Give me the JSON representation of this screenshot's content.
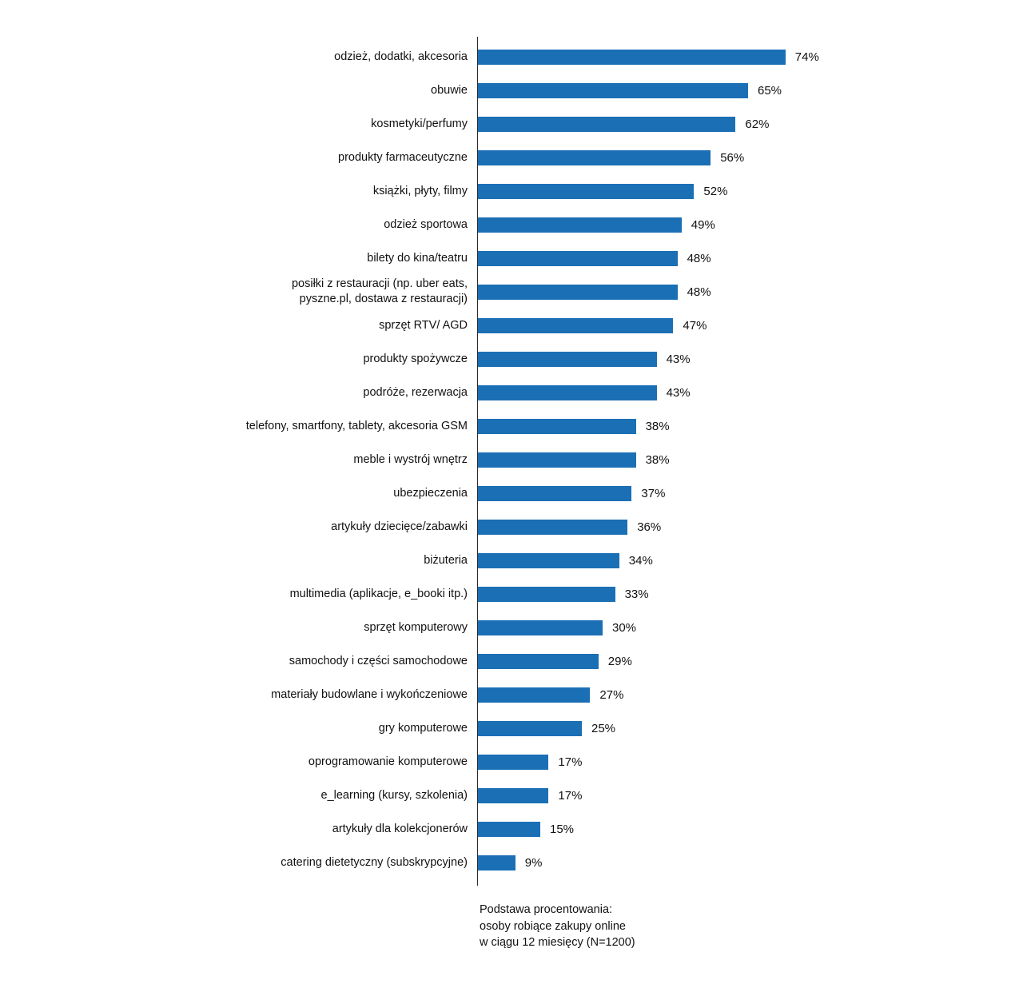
{
  "chart_data": {
    "type": "bar",
    "orientation": "horizontal",
    "title": "",
    "xlabel": "",
    "ylabel": "",
    "unit": "%",
    "xlim": [
      0,
      100
    ],
    "grid": false,
    "legend": false,
    "bar_color": "#1b6fb5",
    "categories": [
      "odzież, dodatki, akcesoria",
      "obuwie",
      "kosmetyki/perfumy",
      "produkty farmaceutyczne",
      "książki, płyty, filmy",
      "odzież sportowa",
      "bilety do kina/teatru",
      "posiłki z restauracji (np. uber eats,\npyszne.pl, dostawa z restauracji)",
      "sprzęt RTV/ AGD",
      "produkty spożywcze",
      "podróże, rezerwacja",
      "telefony, smartfony, tablety, akcesoria GSM",
      "meble i wystrój wnętrz",
      "ubezpieczenia",
      "artykuły dziecięce/zabawki",
      "biżuteria",
      "multimedia (aplikacje, e_booki itp.)",
      "sprzęt komputerowy",
      "samochody i części samochodowe",
      "materiały budowlane i wykończeniowe",
      "gry komputerowe",
      "oprogramowanie komputerowe",
      "e_learning (kursy, szkolenia)",
      "artykuły dla kolekcjonerów",
      "catering dietetyczny (subskrypcyjne)"
    ],
    "values": [
      74,
      65,
      62,
      56,
      52,
      49,
      48,
      48,
      47,
      43,
      43,
      38,
      38,
      37,
      36,
      34,
      33,
      30,
      29,
      27,
      25,
      17,
      17,
      15,
      9
    ],
    "footnote": "Podstawa procentowania:\nosoby robiące zakupy online\nw ciągu 12 miesięcy (N=1200)"
  }
}
